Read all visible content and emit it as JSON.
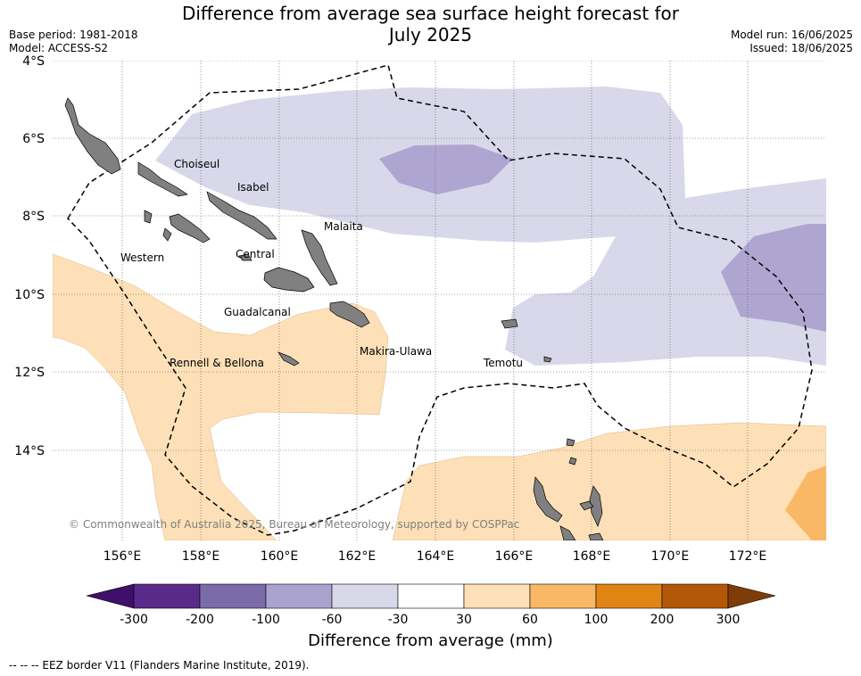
{
  "title_line1": "Difference from average sea surface height forecast for",
  "title_line2": "July 2025",
  "base_period": "Base period: 1981-2018",
  "model": "Model: ACCESS-S2",
  "model_run": "Model run: 16/06/2025",
  "issued": "Issued: 18/06/2025",
  "copyright": "© Commonwealth of Australia 2025, Bureau of Meteorology, supported by COSPPac",
  "lat_ticks": [
    "4°S",
    "6°S",
    "8°S",
    "10°S",
    "12°S",
    "14°S"
  ],
  "lon_ticks": [
    "156°E",
    "158°E",
    "160°E",
    "162°E",
    "164°E",
    "166°E",
    "168°E",
    "170°E",
    "172°E"
  ],
  "places": {
    "choiseul": "Choiseul",
    "isabel": "Isabel",
    "malaita": "Malaita",
    "western": "Western",
    "central": "Central",
    "guadalcanal": "Guadalcanal",
    "rennell": "Rennell & Bellona",
    "makira": "Makira-Ulawa",
    "temotu": "Temotu"
  },
  "colorbar": {
    "colors": [
      "#3f0f6b",
      "#5a2a8a",
      "#7b6ba8",
      "#aaa3cf",
      "#d8d8ea",
      "#ffffff",
      "#fde0b7",
      "#f9b865",
      "#e08414",
      "#b35806",
      "#7f3b08"
    ],
    "tick_labels": [
      "-300",
      "-200",
      "-100",
      "-60",
      "-30",
      "30",
      "60",
      "100",
      "200",
      "300"
    ],
    "label": "Difference from average (mm)"
  },
  "legend_note": "-- -- -- EEZ border V11 (Flanders Marine Institute, 2019)."
}
